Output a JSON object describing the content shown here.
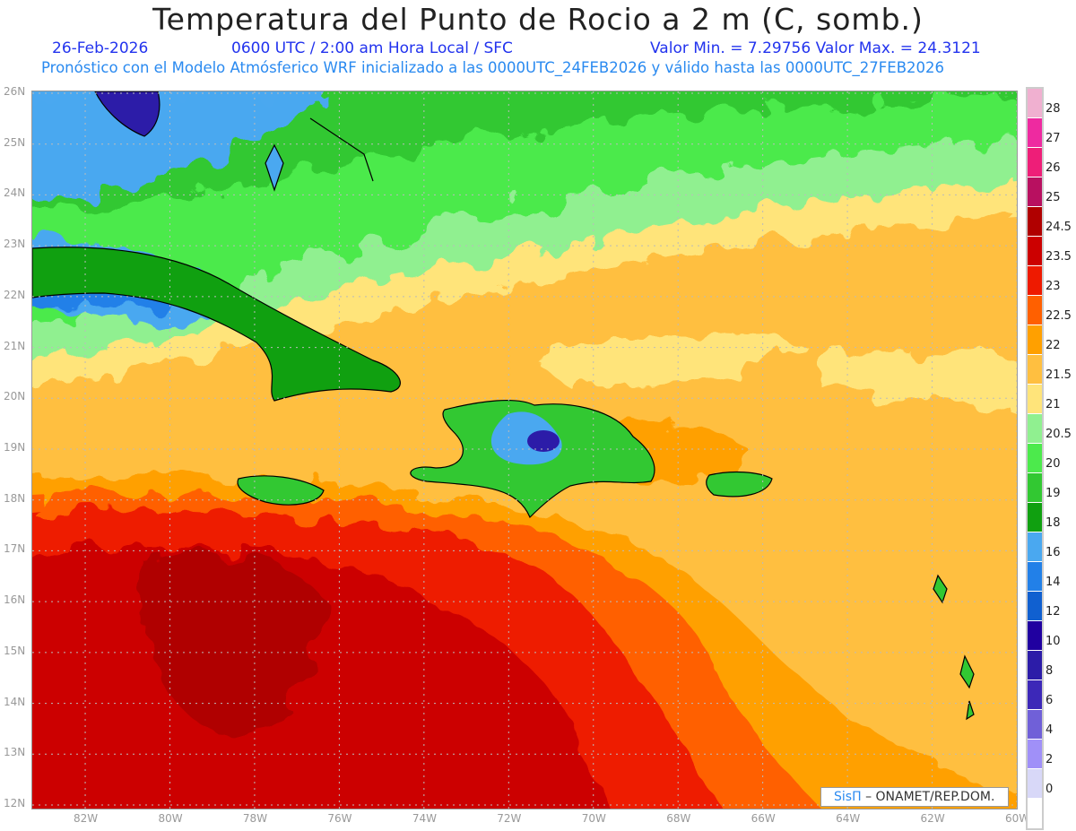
{
  "header": {
    "title": "Temperatura del Punto de Rocio a 2 m (C, somb.)",
    "date": "26-Feb-2026",
    "time": "0600 UTC / 2:00 am Hora Local / SFC",
    "min_max": "Valor Min. = 7.29756  Valor Max. = 24.3121",
    "subtitle": "Pronóstico con el Modelo Atmósferico WRF inicializado a las 0000UTC_24FEB2026 y válido hasta las  0000UTC_27FEB2026"
  },
  "map": {
    "lon_range": [
      -83.25,
      -60
    ],
    "lat_range": [
      12,
      26
    ],
    "lon_labels": [
      "82W",
      "80W",
      "78W",
      "76W",
      "74W",
      "72W",
      "70W",
      "68W",
      "66W",
      "64W",
      "62W",
      "60W"
    ],
    "lon_values": [
      -82,
      -80,
      -78,
      -76,
      -74,
      -72,
      -70,
      -68,
      -66,
      -64,
      -62,
      -60
    ],
    "lat_labels": [
      "26N",
      "25N",
      "24N",
      "23N",
      "22N",
      "21N",
      "20N",
      "19N",
      "18N",
      "17N",
      "16N",
      "15N",
      "14N",
      "13N",
      "12N"
    ],
    "lat_values": [
      26,
      25,
      24,
      23,
      22,
      21,
      20,
      19,
      18,
      17,
      16,
      15,
      14,
      13,
      12
    ]
  },
  "colorbar": {
    "labels": [
      "28",
      "27",
      "26",
      "25",
      "24.5",
      "23.5",
      "23",
      "22.5",
      "22",
      "21.5",
      "21",
      "20.5",
      "20",
      "19",
      "18",
      "16",
      "14",
      "12",
      "10",
      "8",
      "6",
      "4",
      "2",
      "0"
    ],
    "colors": [
      "#f0b0d0",
      "#ee2aa0",
      "#ee1e78",
      "#b81060",
      "#b00000",
      "#cc0000",
      "#ee1a00",
      "#ff6000",
      "#ffa000",
      "#ffbf40",
      "#ffe47a",
      "#90f090",
      "#4cea4c",
      "#32c832",
      "#10a010",
      "#4aa8f0",
      "#2280e8",
      "#1060d0",
      "#2000a0",
      "#2c1ca8",
      "#3c28b8",
      "#7060d8",
      "#a090f8",
      "#d8d8f8",
      "#ffffff"
    ]
  },
  "credit": {
    "logo": "SisΠ",
    "text": "– ONAMET/REP.DOM."
  }
}
